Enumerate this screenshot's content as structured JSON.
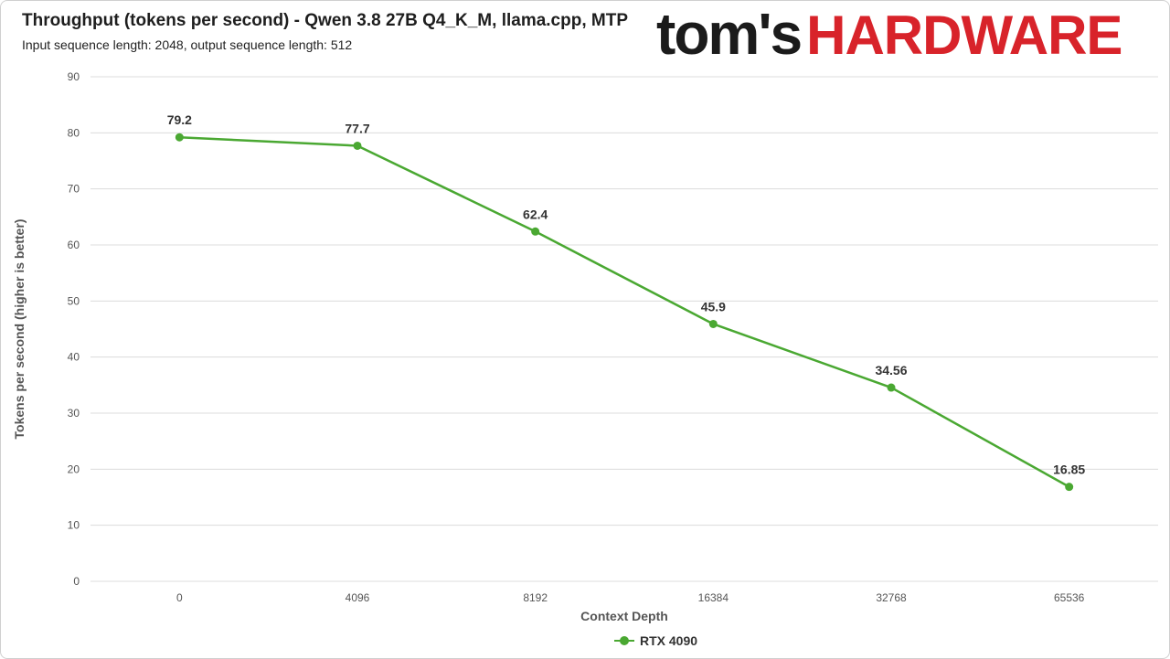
{
  "title": "Throughput (tokens per second) - Qwen 3.8 27B Q4_K_M, llama.cpp, MTP",
  "subtitle": "Input sequence length: 2048, output sequence length: 512",
  "logo": {
    "part1": "tom's",
    "part2": "HARDWARE"
  },
  "colors": {
    "series": "#4aa832",
    "grid": "#dcdcdc",
    "logo_red": "#d8232a"
  },
  "chart_data": {
    "type": "line",
    "categories": [
      "0",
      "4096",
      "8192",
      "16384",
      "32768",
      "65536"
    ],
    "series": [
      {
        "name": "RTX 4090",
        "values": [
          79.2,
          77.7,
          62.4,
          45.9,
          34.56,
          16.85
        ],
        "labels": [
          "79.2",
          "77.7",
          "62.4",
          "45.9",
          "34.56",
          "16.85"
        ]
      }
    ],
    "xlabel": "Context Depth",
    "ylabel": "Tokens per second (higher is better)",
    "ylim": [
      0,
      90
    ],
    "yticks": [
      0,
      10,
      20,
      30,
      40,
      50,
      60,
      70,
      80,
      90
    ],
    "grid": true,
    "legend": "bottom"
  }
}
